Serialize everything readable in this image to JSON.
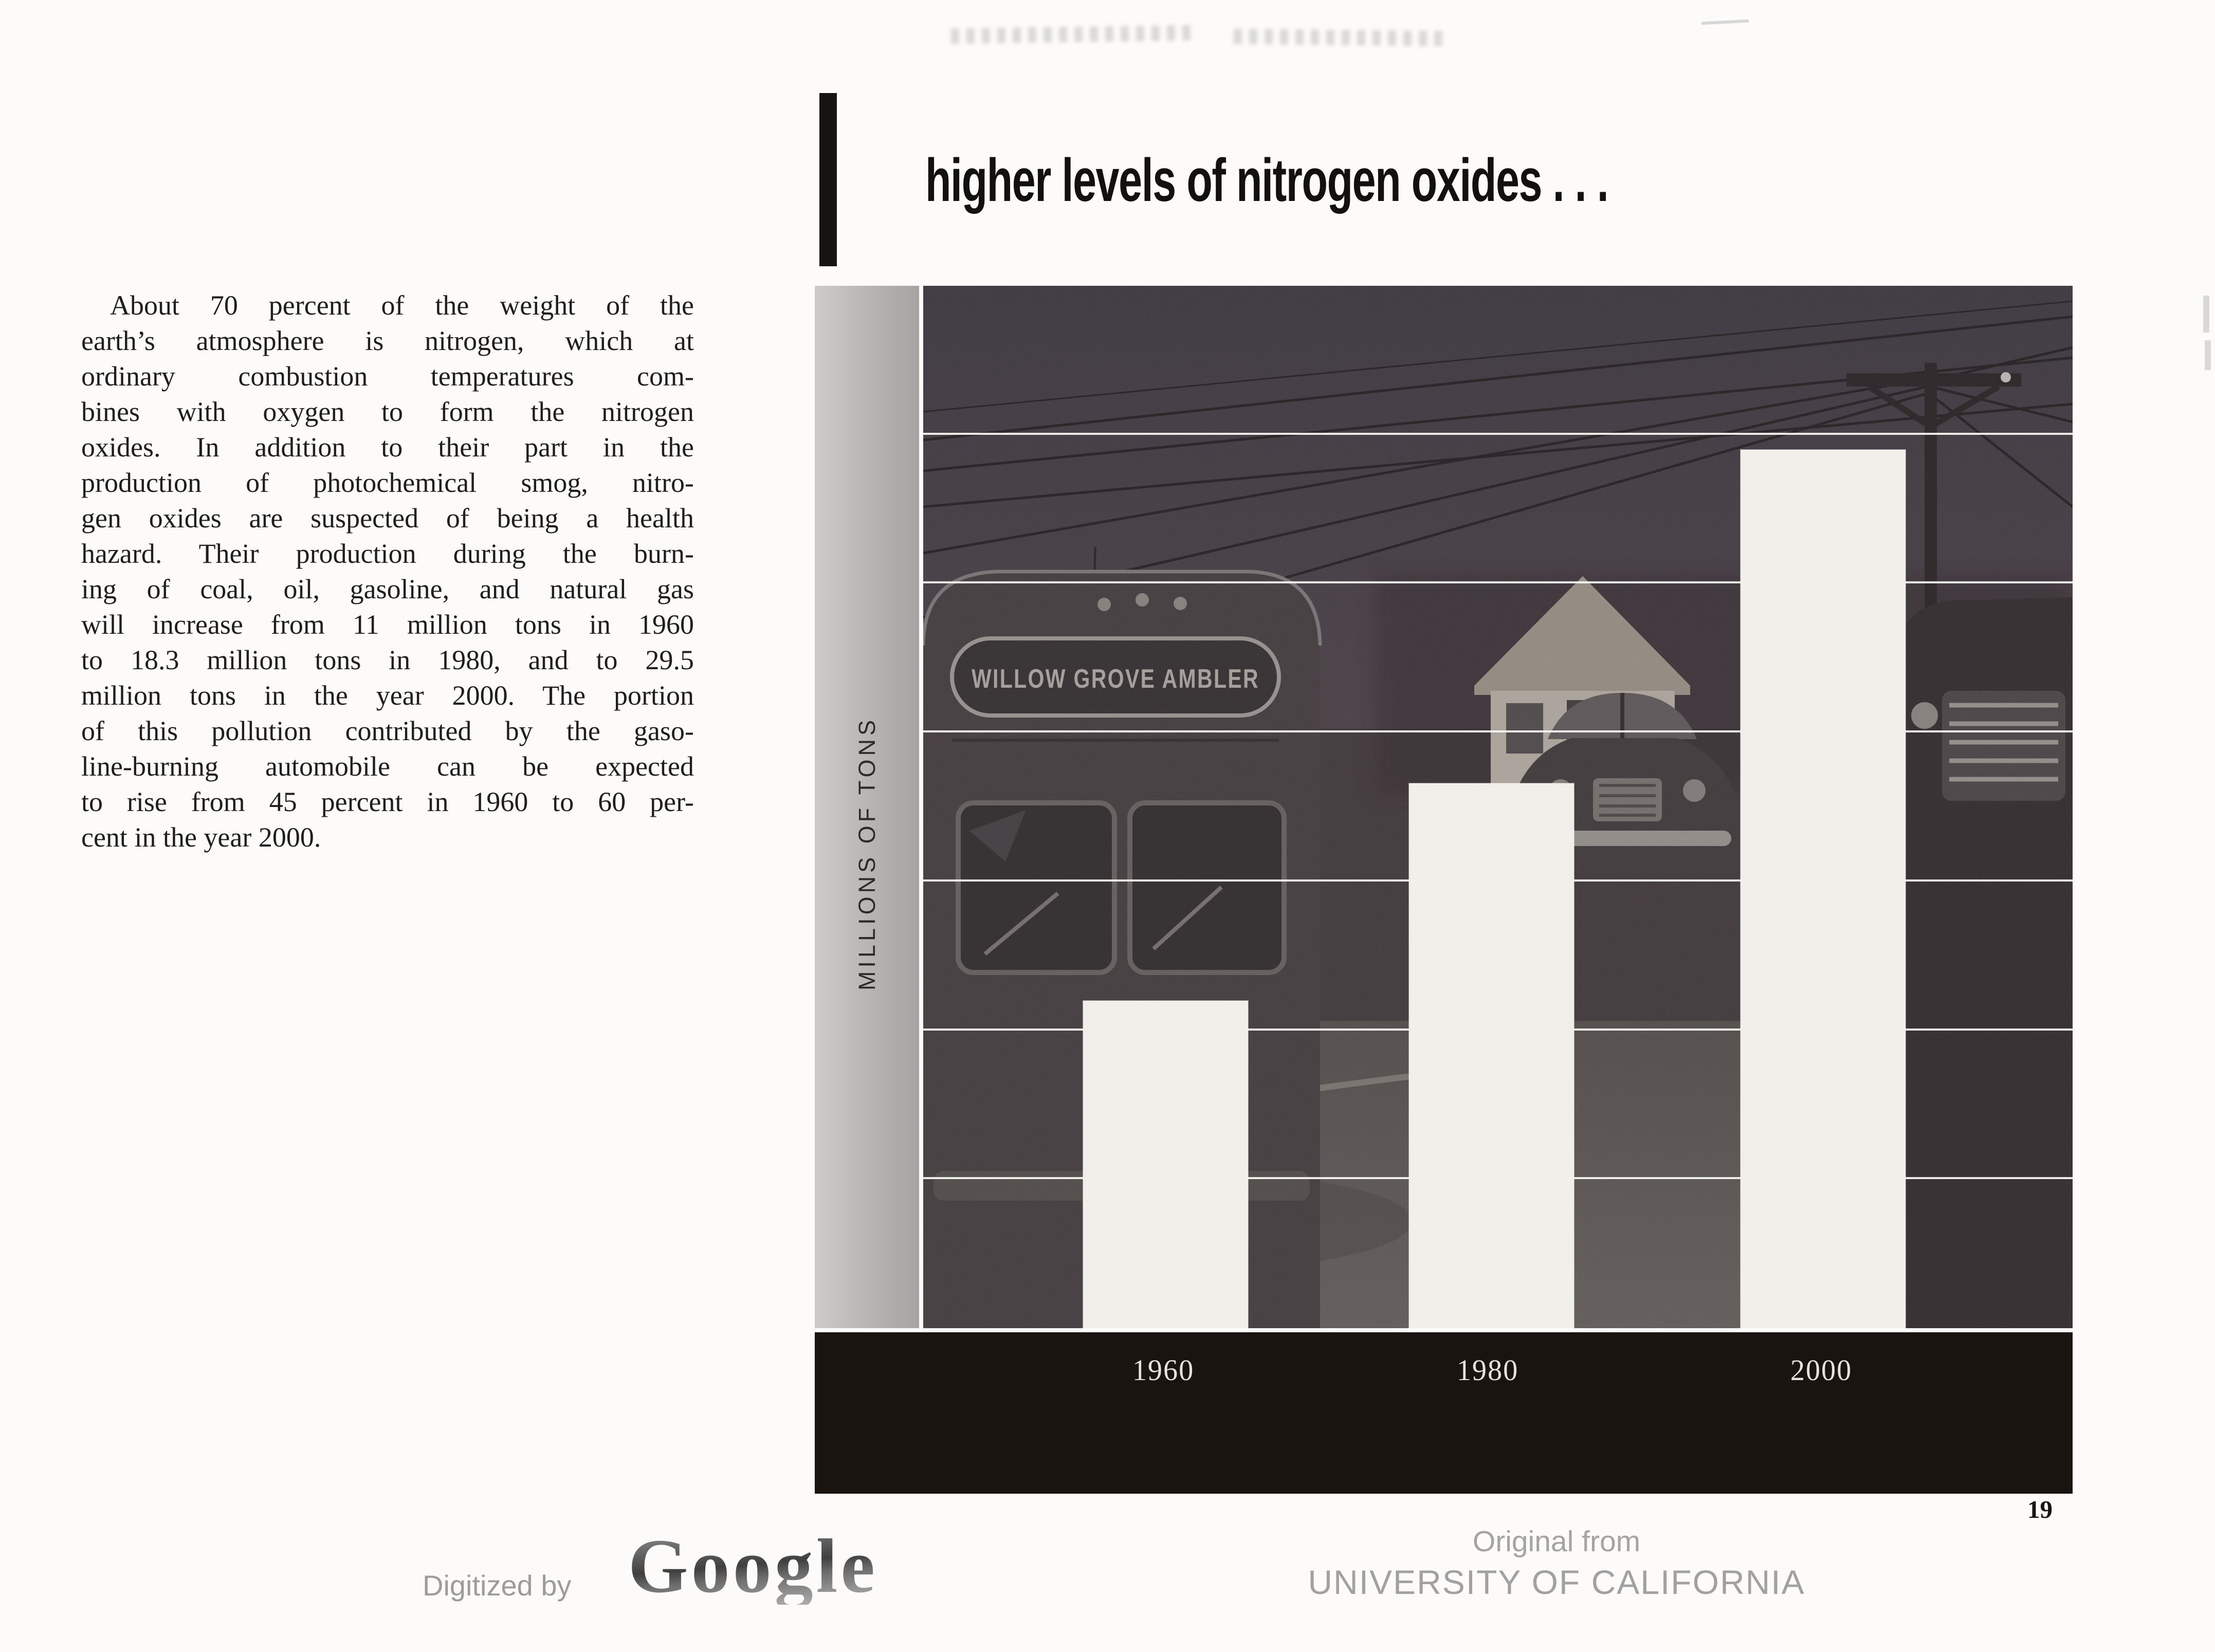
{
  "header": {
    "title": "higher levels of nitrogen oxides . . ."
  },
  "article": {
    "paragraph_lines": [
      "About 70 percent of the weight of the",
      "earth’s atmosphere is nitrogen, which at",
      "ordinary combustion temperatures com-",
      "bines with oxygen to form the nitrogen",
      "oxides.  In addition to their part in the",
      "production of photochemical smog, nitro-",
      "gen oxides are suspected of being a health",
      "hazard.  Their production during the burn-",
      "ing of coal, oil, gasoline, and natural gas",
      "will increase from 11 million tons in 1960",
      "to 18.3 million tons in 1980, and to 29.5",
      "million tons in the year 2000.  The portion",
      "of this pollution contributed by the gaso-",
      "line-burning automobile can be expected",
      "to rise from 45 percent in 1960 to 60 per-",
      "cent in the year 2000."
    ]
  },
  "chart_data": {
    "type": "bar",
    "categories": [
      "1960",
      "1980",
      "2000"
    ],
    "values": [
      11,
      18.3,
      29.5
    ],
    "unit": "million tons",
    "title": "higher levels of nitrogen oxides . . .",
    "xlabel": "",
    "ylabel": "MILLIONS OF TONS",
    "ylim": [
      0,
      35
    ],
    "gridline_interval": 5,
    "grid": "horizontal white lines over photograph",
    "legend": "none",
    "bar_color": "#f1efe9",
    "background": "photograph of 1950s street with bus, cars, house and power lines"
  },
  "figure": {
    "bus_sign": "WILLOW GROVE AMBLER",
    "axis_band_color": "#1a1410",
    "strip_color": "#b5b4b2"
  },
  "page": {
    "page_number": "19",
    "background": "#fcfbf9"
  },
  "footer": {
    "digitized_by": "Digitized by",
    "logo": "Google",
    "original_from": "Original from",
    "institution": "UNIVERSITY OF CALIFORNIA"
  }
}
